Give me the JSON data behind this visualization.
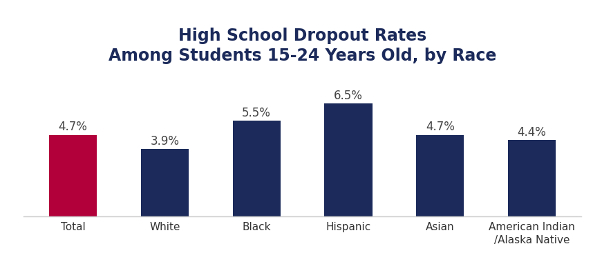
{
  "title": "High School Dropout Rates\nAmong Students 15-24 Years Old, by Race",
  "categories": [
    "Total",
    "White",
    "Black",
    "Hispanic",
    "Asian",
    "American Indian\n/Alaska Native"
  ],
  "values": [
    4.7,
    3.9,
    5.5,
    6.5,
    4.7,
    4.4
  ],
  "bar_colors": [
    "#B2003A",
    "#1B2A5A",
    "#1B2A5A",
    "#1B2A5A",
    "#1B2A5A",
    "#1B2A5A"
  ],
  "value_labels": [
    "4.7%",
    "3.9%",
    "5.5%",
    "6.5%",
    "4.7%",
    "4.4%"
  ],
  "ylim": [
    0,
    8.2
  ],
  "background_color": "#ffffff",
  "title_color": "#1B2A5A",
  "title_fontsize": 17,
  "label_fontsize": 12,
  "tick_fontsize": 11,
  "bar_width": 0.52
}
